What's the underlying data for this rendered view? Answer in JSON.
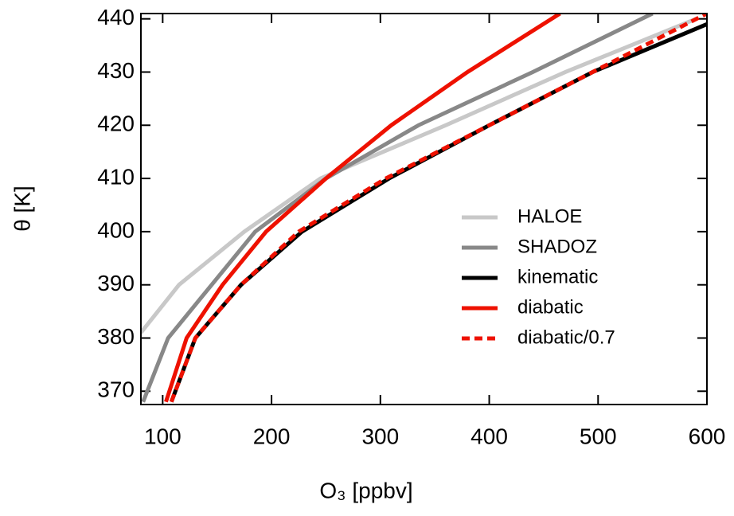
{
  "chart_data": {
    "type": "line",
    "xlabel": "O₃ [ppbv]",
    "ylabel": "θ [K]",
    "xlim": [
      80,
      600
    ],
    "ylim": [
      367.5,
      441
    ],
    "xticks": [
      100,
      200,
      300,
      400,
      500,
      600
    ],
    "yticks": [
      370,
      380,
      390,
      400,
      410,
      420,
      430,
      440
    ],
    "legend": "right",
    "series": [
      {
        "name": "HALOE",
        "color": "#c8c8c8",
        "dash": false,
        "x": [
          80,
          115,
          175,
          245,
          360,
          470,
          590
        ],
        "values": [
          381,
          390,
          400,
          410,
          420,
          430,
          440
        ]
      },
      {
        "name": "SHADOZ",
        "color": "#888888",
        "dash": false,
        "x": [
          82,
          105,
          145,
          185,
          250,
          335,
          440,
          550
        ],
        "values": [
          368,
          380,
          390,
          400,
          410,
          420,
          430,
          441
        ]
      },
      {
        "name": "kinematic",
        "color": "#000000",
        "dash": false,
        "x": [
          108,
          130,
          172,
          228,
          308,
          400,
          495,
          600
        ],
        "values": [
          368,
          380,
          390,
          400,
          410,
          420,
          430,
          439
        ]
      },
      {
        "name": "diabatic",
        "color": "#ee1100",
        "dash": false,
        "x": [
          103,
          122,
          155,
          195,
          250,
          310,
          380,
          465
        ],
        "values": [
          368,
          380,
          390,
          400,
          410,
          420,
          430,
          441
        ]
      },
      {
        "name": "diabatic/0.7",
        "color": "#ee1100",
        "dash": true,
        "x": [
          108,
          130,
          172,
          225,
          305,
          400,
          495,
          600
        ],
        "values": [
          368,
          380,
          390,
          400,
          410,
          420,
          430,
          441
        ]
      }
    ]
  }
}
